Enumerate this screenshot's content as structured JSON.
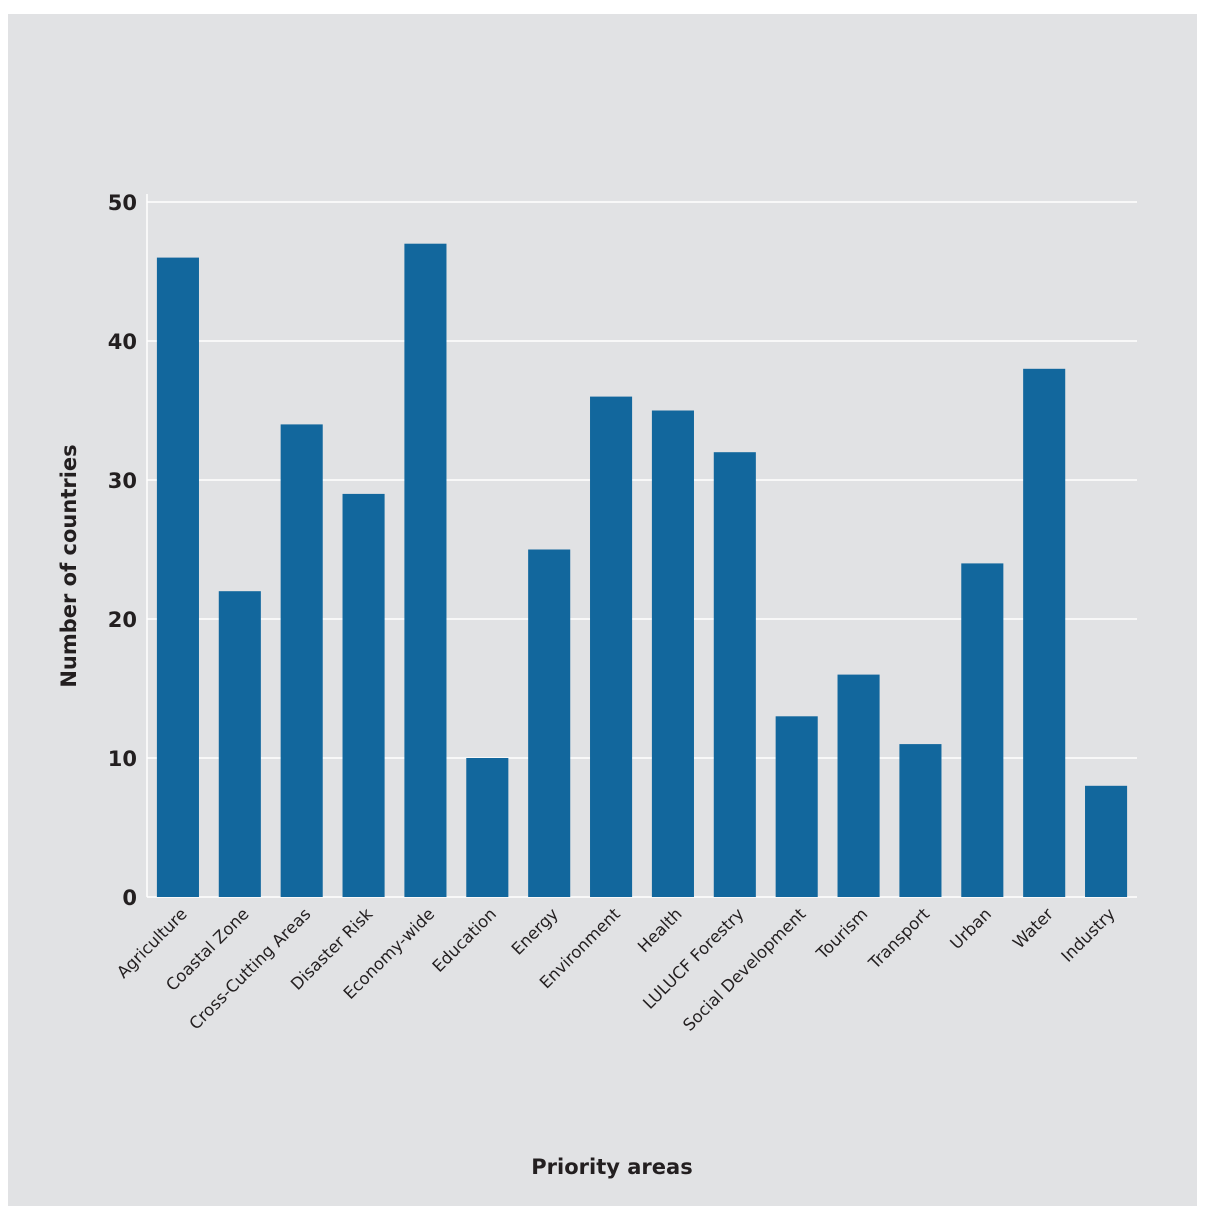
{
  "chart_data": {
    "type": "bar",
    "title": "",
    "xlabel": "Priority areas",
    "ylabel": "Number of countries",
    "categories": [
      "Agriculture",
      "Coastal Zone",
      "Cross-Cutting Areas",
      "Disaster Risk",
      "Economy-wide",
      "Education",
      "Energy",
      "Environment",
      "Health",
      "LULUCF  Forestry",
      "Social Development",
      "Tourism",
      "Transport",
      "Urban",
      "Water",
      "Industry"
    ],
    "values": [
      46,
      22,
      34,
      29,
      47,
      10,
      25,
      36,
      35,
      32,
      13,
      16,
      11,
      24,
      38,
      8
    ],
    "ylim": [
      0,
      50
    ],
    "yticks": [
      0,
      10,
      20,
      30,
      40,
      50
    ],
    "grid": true,
    "colors": {
      "bar": "#12679d",
      "grid": "#ffffff",
      "background": "#e1e2e4",
      "text": "#231f20"
    }
  }
}
